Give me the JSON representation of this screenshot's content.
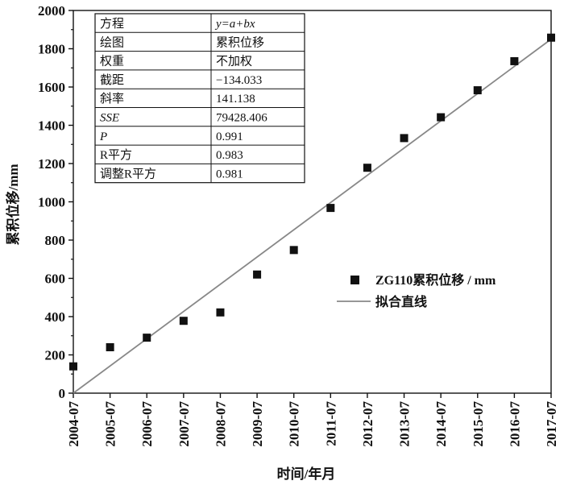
{
  "chart_data": {
    "type": "scatter",
    "x_tick_labels": [
      "2004-07",
      "2005-07",
      "2006-07",
      "2007-07",
      "2008-07",
      "2009-07",
      "2010-07",
      "2011-07",
      "2012-07",
      "2013-07",
      "2014-07",
      "2015-07",
      "2016-07",
      "2017-07"
    ],
    "y_ticks": [
      0,
      200,
      400,
      600,
      800,
      1000,
      1200,
      1400,
      1600,
      1800,
      2000
    ],
    "ylim": [
      0,
      2000
    ],
    "xlabel": "时间/年月",
    "ylabel": "累积位移/mm",
    "legend_position": "right-middle",
    "series": [
      {
        "name": "ZG110累积位移 / mm",
        "marker": "square",
        "color": "#111111",
        "points": [
          {
            "x": "2004-07",
            "y": 140
          },
          {
            "x": "2005-07",
            "y": 240
          },
          {
            "x": "2006-07",
            "y": 290
          },
          {
            "x": "2007-07",
            "y": 378
          },
          {
            "x": "2008-07",
            "y": 422
          },
          {
            "x": "2009-07",
            "y": 620
          },
          {
            "x": "2010-07",
            "y": 748
          },
          {
            "x": "2011-07",
            "y": 968
          },
          {
            "x": "2012-07",
            "y": 1178
          },
          {
            "x": "2013-07",
            "y": 1333
          },
          {
            "x": "2014-07",
            "y": 1442
          },
          {
            "x": "2015-07",
            "y": 1583
          },
          {
            "x": "2016-07",
            "y": 1735
          },
          {
            "x": "2017-07",
            "y": 1858
          }
        ]
      },
      {
        "name": "拟合直线",
        "type": "line",
        "color": "#888888",
        "points": [
          {
            "x": "2004-07",
            "y": 0
          },
          {
            "x": "2017-07",
            "y": 1850
          }
        ]
      }
    ],
    "fit_table": [
      {
        "label": "方程",
        "value": "y=a+bx",
        "label_italic": false,
        "value_italic": true
      },
      {
        "label": "绘图",
        "value": "累积位移",
        "label_italic": false,
        "value_italic": false
      },
      {
        "label": "权重",
        "value": "不加权",
        "label_italic": false,
        "value_italic": false
      },
      {
        "label": "截距",
        "value": "−134.033",
        "label_italic": false,
        "value_italic": false
      },
      {
        "label": "斜率",
        "value": "141.138",
        "label_italic": false,
        "value_italic": false
      },
      {
        "label": "SSE",
        "value": "79428.406",
        "label_italic": true,
        "value_italic": false
      },
      {
        "label": "P",
        "value": "0.991",
        "label_italic": true,
        "value_italic": false
      },
      {
        "label": "R平方",
        "value": "0.983",
        "label_italic": false,
        "value_italic": false
      },
      {
        "label": "调整R平方",
        "value": "0.981",
        "label_italic": false,
        "value_italic": false
      }
    ]
  }
}
